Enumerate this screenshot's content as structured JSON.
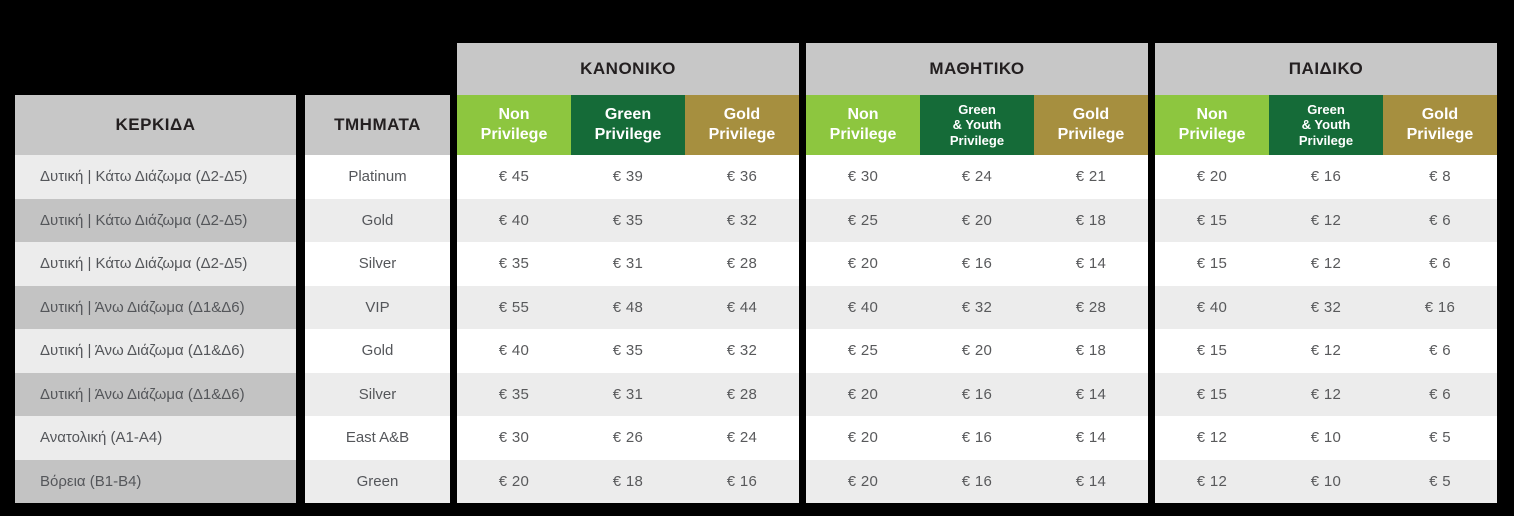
{
  "colors": {
    "background": "#000000",
    "header_gray": "#c7c7c7",
    "stripe_dark_gray": "#c3c3c3",
    "stripe_light_gray": "#ececec",
    "stripe_white": "#ffffff",
    "non_privilege_green": "#8dc63f",
    "green_privilege_dark": "#156b38",
    "gold_privilege": "#a68f3f",
    "text_dark": "#231f20",
    "text_body": "#54565a"
  },
  "currency_symbol": "€",
  "chart_data": {
    "type": "table",
    "stand_header": "ΚΕΡΚΙΔΑ",
    "section_header": "ΤΜΗΜΑΤΑ",
    "stands": [
      "Δυτική | Κάτω Διάζωμα (Δ2-Δ5)",
      "Δυτική | Κάτω Διάζωμα (Δ2-Δ5)",
      "Δυτική | Κάτω Διάζωμα (Δ2-Δ5)",
      "Δυτική | Άνω Διάζωμα (Δ1&Δ6)",
      "Δυτική | Άνω Διάζωμα (Δ1&Δ6)",
      "Δυτική | Άνω Διάζωμα (Δ1&Δ6)",
      "Ανατολική (Α1-Α4)",
      "Βόρεια (Β1-Β4)"
    ],
    "sections": [
      "Platinum",
      "Gold",
      "Silver",
      "VIP",
      "Gold",
      "Silver",
      "East A&B",
      "Green"
    ],
    "groups": [
      {
        "title": "ΚΑΝΟΝΙΚΟ",
        "columns": [
          {
            "lines": [
              "Non",
              "Privilege"
            ],
            "color": "#8dc63f"
          },
          {
            "lines": [
              "Green",
              "Privilege"
            ],
            "color": "#156b38"
          },
          {
            "lines": [
              "Gold",
              "Privilege"
            ],
            "color": "#a68f3f"
          }
        ],
        "prices_eur": [
          [
            45,
            39,
            36
          ],
          [
            40,
            35,
            32
          ],
          [
            35,
            31,
            28
          ],
          [
            55,
            48,
            44
          ],
          [
            40,
            35,
            32
          ],
          [
            35,
            31,
            28
          ],
          [
            30,
            26,
            24
          ],
          [
            20,
            18,
            16
          ]
        ]
      },
      {
        "title": "ΜΑΘΗΤΙΚΟ",
        "columns": [
          {
            "lines": [
              "Non",
              "Privilege"
            ],
            "color": "#8dc63f"
          },
          {
            "lines": [
              "Green",
              "& Youth",
              "Privilege"
            ],
            "color": "#156b38"
          },
          {
            "lines": [
              "Gold",
              "Privilege"
            ],
            "color": "#a68f3f"
          }
        ],
        "prices_eur": [
          [
            30,
            24,
            21
          ],
          [
            25,
            20,
            18
          ],
          [
            20,
            16,
            14
          ],
          [
            40,
            32,
            28
          ],
          [
            25,
            20,
            18
          ],
          [
            20,
            16,
            14
          ],
          [
            20,
            16,
            14
          ],
          [
            20,
            16,
            14
          ]
        ]
      },
      {
        "title": "ΠΑΙΔΙΚΟ",
        "columns": [
          {
            "lines": [
              "Non",
              "Privilege"
            ],
            "color": "#8dc63f"
          },
          {
            "lines": [
              "Green",
              "& Youth",
              "Privilege"
            ],
            "color": "#156b38"
          },
          {
            "lines": [
              "Gold",
              "Privilege"
            ],
            "color": "#a68f3f"
          }
        ],
        "prices_eur": [
          [
            20,
            16,
            8
          ],
          [
            15,
            12,
            6
          ],
          [
            15,
            12,
            6
          ],
          [
            40,
            32,
            16
          ],
          [
            15,
            12,
            6
          ],
          [
            15,
            12,
            6
          ],
          [
            12,
            10,
            5
          ],
          [
            12,
            10,
            5
          ]
        ]
      }
    ]
  }
}
